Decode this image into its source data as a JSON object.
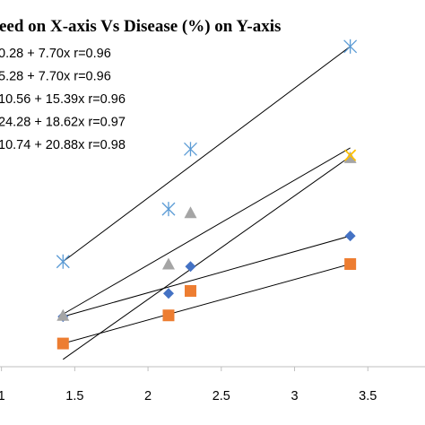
{
  "chart_data": {
    "type": "scatter",
    "title": "eed on X-axis Vs Disease (%) on Y-axis",
    "xlabel": "",
    "ylabel": "",
    "xlim": [
      0.99,
      3.89
    ],
    "ylim": [
      0,
      30
    ],
    "x_ticks": [
      "1",
      "1.5",
      "2",
      "2.5",
      "3",
      "3.5"
    ],
    "grid": false,
    "series": [
      {
        "marker": "diamond",
        "color": "#4472C4",
        "points": [
          [
            1.42,
            4.1
          ],
          [
            2.14,
            6.0
          ],
          [
            2.29,
            8.2
          ],
          [
            3.38,
            10.7
          ]
        ],
        "fit": {
          "intercept": -0.28,
          "slope": 7.7
        },
        "equation": "0.28 + 7.70x  r=0.96"
      },
      {
        "marker": "square",
        "color": "#ED7D31",
        "points": [
          [
            1.42,
            1.9
          ],
          [
            2.14,
            4.2
          ],
          [
            2.29,
            6.2
          ],
          [
            3.38,
            8.4
          ]
        ],
        "fit": {
          "intercept": -5.28,
          "slope": 7.7
        },
        "equation": "5.28 + 7.70x  r=0.96"
      },
      {
        "marker": "triangle",
        "color": "#A5A5A5",
        "points": [
          [
            1.42,
            4.2
          ],
          [
            2.14,
            8.4
          ],
          [
            2.29,
            12.6
          ],
          [
            3.38,
            17.1
          ]
        ],
        "fit": {
          "intercept": -10.56,
          "slope": 15.39
        },
        "equation": "10.56 + 15.39x  r=0.96"
      },
      {
        "marker": "x",
        "color": "#FFC000",
        "points": [
          [
            3.38,
            17.3
          ]
        ],
        "fit": {
          "intercept": -24.28,
          "slope": 18.62
        },
        "equation": "24.28 + 18.62x  r=0.97"
      },
      {
        "marker": "asterisk",
        "color": "#5B9BD5",
        "points": [
          [
            1.42,
            8.6
          ],
          [
            2.14,
            12.9
          ],
          [
            2.29,
            17.8
          ],
          [
            3.38,
            26.2
          ]
        ],
        "fit": {
          "intercept": -10.74,
          "slope": 20.88
        },
        "equation": "10.74 + 20.88x  r=0.98"
      }
    ],
    "trendlines": [
      {
        "x": [
          1.42,
          3.38
        ],
        "y": [
          4.1,
          10.7
        ]
      },
      {
        "x": [
          1.42,
          3.38
        ],
        "y": [
          1.9,
          8.4
        ]
      },
      {
        "x": [
          1.42,
          3.38
        ],
        "y": [
          4.3,
          17.9
        ]
      },
      {
        "x": [
          1.42,
          3.38
        ],
        "y": [
          0.6,
          17.2
        ]
      },
      {
        "x": [
          1.42,
          3.38
        ],
        "y": [
          8.6,
          26.2
        ]
      }
    ]
  }
}
